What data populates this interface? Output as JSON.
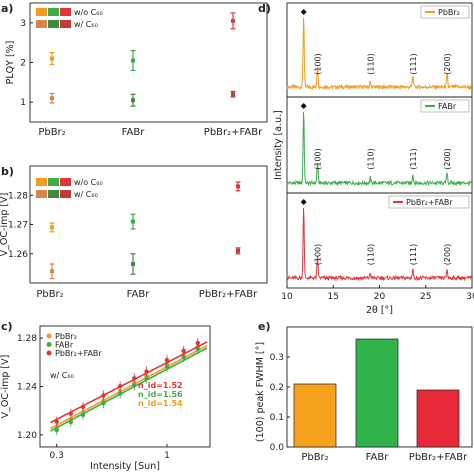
{
  "colors": {
    "pbbr2": "#f39c1f",
    "fabr": "#3cae49",
    "mix": "#e0363a",
    "pbbr2_c60": "#d98443",
    "fabr_c60": "#3f8a3f",
    "mix_c60": "#bf3b3b",
    "bar_pbbr2": "#f7a21d",
    "bar_fabr": "#2fb34a",
    "bar_mix": "#e8293a"
  },
  "chart_data": [
    {
      "panel": "a)",
      "type": "scatter",
      "ylabel": "PLQY [%]",
      "ylim": [
        0.5,
        3.5
      ],
      "yticks": [
        "1",
        "2",
        "3"
      ],
      "categories": [
        "PbBr₂",
        "FABr",
        "PbBr₂+FABr"
      ],
      "legend": [
        "w/o C₆₀",
        "w/ C₆₀"
      ],
      "series": [
        {
          "name": "w/o C₆₀",
          "values": [
            2.1,
            2.05,
            3.05
          ],
          "err": [
            0.15,
            0.25,
            0.2
          ]
        },
        {
          "name": "w/ C₆₀",
          "values": [
            1.1,
            1.05,
            1.2
          ],
          "err": [
            0.12,
            0.15,
            0.07
          ]
        }
      ]
    },
    {
      "panel": "b)",
      "type": "scatter",
      "ylabel": "V_OC-imp [V]",
      "ylim": [
        1.25,
        1.29
      ],
      "yticks": [
        "1.26",
        "1.27",
        "1.28"
      ],
      "categories": [
        "PbBr₂",
        "FABr",
        "PbBr₂+FABr"
      ],
      "legend": [
        "w/o C₆₀",
        "w/ C₆₀"
      ],
      "series": [
        {
          "name": "w/o C₆₀",
          "values": [
            1.269,
            1.271,
            1.283
          ],
          "err": [
            0.0015,
            0.0025,
            0.0015
          ]
        },
        {
          "name": "w/ C₆₀",
          "values": [
            1.254,
            1.2565,
            1.261
          ],
          "err": [
            0.0025,
            0.0035,
            0.001
          ]
        }
      ]
    },
    {
      "panel": "c)",
      "type": "line",
      "xscale": "log",
      "xlabel": "Intensity [Sun]",
      "ylabel": "V_OC-imp [V]",
      "xlim": [
        0.25,
        1.6
      ],
      "ylim": [
        1.19,
        1.29
      ],
      "xticks": [
        "0.3",
        "1"
      ],
      "yticks": [
        "1.20",
        "1.24",
        "1.28"
      ],
      "annotation": "w/ C₆₀",
      "series": [
        {
          "name": "PbBr₂",
          "x": [
            0.3,
            0.35,
            0.4,
            0.5,
            0.6,
            0.7,
            0.8,
            1.0,
            1.2,
            1.4
          ],
          "fit": [
            1.206,
            1.273
          ],
          "n": "n_id=1.54"
        },
        {
          "name": "FABr",
          "x": [
            0.3,
            0.35,
            0.4,
            0.5,
            0.6,
            0.7,
            0.8,
            1.0,
            1.2,
            1.4
          ],
          "fit": [
            1.204,
            1.271
          ],
          "n": "n_id=1.56"
        },
        {
          "name": "PbBr₂+FABr",
          "x": [
            0.3,
            0.35,
            0.4,
            0.5,
            0.6,
            0.7,
            0.8,
            1.0,
            1.2,
            1.4
          ],
          "fit": [
            1.211,
            1.276
          ],
          "n": "n_id=1.52"
        }
      ]
    },
    {
      "panel": "d)",
      "type": "line",
      "xlabel": "2θ [°]",
      "ylabel": "Intensity [a.u.]",
      "xlim": [
        10,
        30
      ],
      "xticks": [
        "10",
        "15",
        "20",
        "25",
        "30"
      ],
      "peak_labels": [
        "(100)",
        "(110)",
        "(111)",
        "(200)"
      ],
      "peak_positions": [
        13.3,
        19.0,
        23.6,
        27.3
      ],
      "marker_position": 11.8,
      "series": [
        {
          "name": "PbBr₂",
          "peaks": [
            [
              11.8,
              1.0
            ],
            [
              13.3,
              0.3
            ],
            [
              19.0,
              0.07
            ],
            [
              23.6,
              0.16
            ],
            [
              27.3,
              0.18
            ]
          ]
        },
        {
          "name": "FABr",
          "peaks": [
            [
              11.8,
              1.0
            ],
            [
              13.3,
              0.28
            ],
            [
              19.0,
              0.07
            ],
            [
              23.6,
              0.12
            ],
            [
              27.3,
              0.15
            ]
          ]
        },
        {
          "name": "PbBr₂+FABr",
          "peaks": [
            [
              11.8,
              1.0
            ],
            [
              13.3,
              0.28
            ],
            [
              19.0,
              0.07
            ],
            [
              23.6,
              0.12
            ],
            [
              27.3,
              0.12
            ]
          ]
        }
      ]
    },
    {
      "panel": "e)",
      "type": "bar",
      "ylabel": "(100) peak FWHM [°]",
      "ylim": [
        0,
        0.4
      ],
      "yticks": [
        "0.0",
        "0.1",
        "0.2",
        "0.3"
      ],
      "categories": [
        "PbBr₂",
        "FABr",
        "PbBr₂+FABr"
      ],
      "values": [
        0.21,
        0.36,
        0.19
      ]
    }
  ]
}
